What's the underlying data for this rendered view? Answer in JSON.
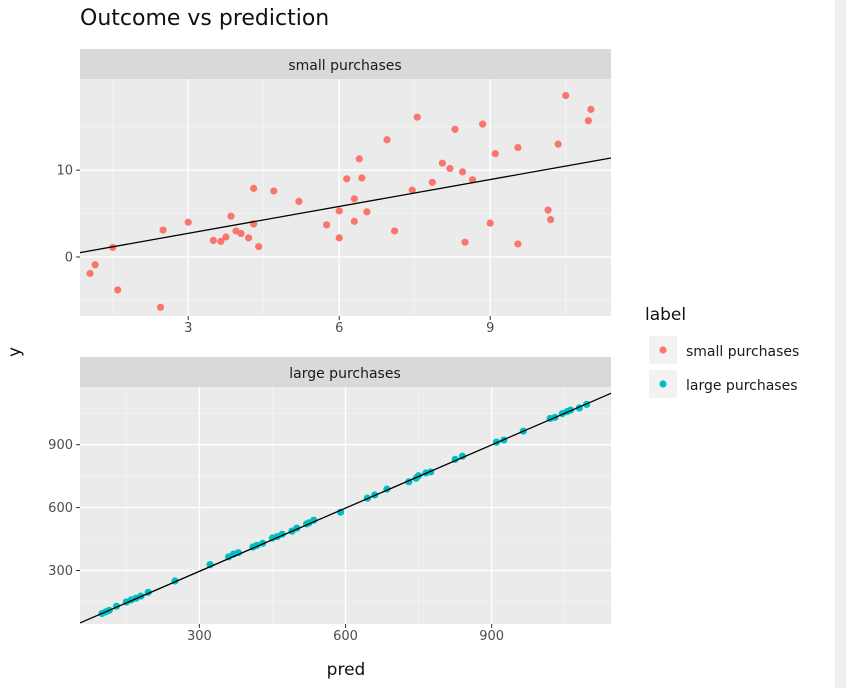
{
  "chart_data": {
    "type": "scatter",
    "title": "Outcome vs prediction",
    "xlabel": "pred",
    "ylabel": "y",
    "legend": {
      "title": "label",
      "placement": "right",
      "entries": [
        {
          "name": "small purchases",
          "color": "#F8766D"
        },
        {
          "name": "large purchases",
          "color": "#00BFC4"
        }
      ]
    },
    "facets": [
      {
        "strip": "small purchases",
        "color": "#F8766D",
        "xlim": [
          0.85,
          11.4
        ],
        "ylim": [
          -6.8,
          20.5
        ],
        "xticks": [
          3,
          6,
          9
        ],
        "xminor": [
          1.5,
          4.5,
          7.5,
          10.5
        ],
        "yticks": [
          0,
          10
        ],
        "yminor": [
          -5,
          5,
          15
        ],
        "fit_line": {
          "x": [
            0.85,
            11.4
          ],
          "y": [
            0.5,
            11.4
          ]
        },
        "points": [
          [
            1.05,
            -1.9
          ],
          [
            1.15,
            -0.9
          ],
          [
            1.5,
            1.1
          ],
          [
            1.6,
            -3.8
          ],
          [
            2.45,
            -5.8
          ],
          [
            2.5,
            3.1
          ],
          [
            3.0,
            4.0
          ],
          [
            3.5,
            1.9
          ],
          [
            3.65,
            1.8
          ],
          [
            3.75,
            2.3
          ],
          [
            3.85,
            4.7
          ],
          [
            3.95,
            3.0
          ],
          [
            4.05,
            2.7
          ],
          [
            4.2,
            2.2
          ],
          [
            4.3,
            7.9
          ],
          [
            4.3,
            3.8
          ],
          [
            4.4,
            1.2
          ],
          [
            4.7,
            7.6
          ],
          [
            5.2,
            6.4
          ],
          [
            5.75,
            3.7
          ],
          [
            6.0,
            5.3
          ],
          [
            6.0,
            2.2
          ],
          [
            6.15,
            9.0
          ],
          [
            6.3,
            6.7
          ],
          [
            6.3,
            4.1
          ],
          [
            6.4,
            11.3
          ],
          [
            6.45,
            9.1
          ],
          [
            6.55,
            5.2
          ],
          [
            6.95,
            13.5
          ],
          [
            7.1,
            3.0
          ],
          [
            7.45,
            7.7
          ],
          [
            7.55,
            16.1
          ],
          [
            7.85,
            8.6
          ],
          [
            8.05,
            10.8
          ],
          [
            8.2,
            10.2
          ],
          [
            8.3,
            14.7
          ],
          [
            8.45,
            9.8
          ],
          [
            8.5,
            1.7
          ],
          [
            8.65,
            8.9
          ],
          [
            8.85,
            15.3
          ],
          [
            9.0,
            3.9
          ],
          [
            9.1,
            11.9
          ],
          [
            9.55,
            12.6
          ],
          [
            9.55,
            1.5
          ],
          [
            10.15,
            5.4
          ],
          [
            10.2,
            4.3
          ],
          [
            10.35,
            13.0
          ],
          [
            10.5,
            18.6
          ],
          [
            10.95,
            15.7
          ],
          [
            11.0,
            17.0
          ]
        ]
      },
      {
        "strip": "large purchases",
        "color": "#00BFC4",
        "xlim": [
          55,
          1145
        ],
        "ylim": [
          45,
          1175
        ],
        "xticks": [
          300,
          600,
          900
        ],
        "xminor": [
          150,
          450,
          750,
          1050
        ],
        "yticks": [
          300,
          600,
          900
        ],
        "yminor": [
          150,
          450,
          750,
          1050
        ],
        "fit_line": {
          "x": [
            55,
            1145
          ],
          "y": [
            50,
            1145
          ]
        },
        "points": [
          [
            100,
            95
          ],
          [
            108,
            103
          ],
          [
            115,
            110
          ],
          [
            130,
            130
          ],
          [
            150,
            150
          ],
          [
            160,
            160
          ],
          [
            170,
            168
          ],
          [
            180,
            178
          ],
          [
            195,
            196
          ],
          [
            250,
            250
          ],
          [
            322,
            328
          ],
          [
            360,
            365
          ],
          [
            370,
            378
          ],
          [
            380,
            385
          ],
          [
            410,
            412
          ],
          [
            418,
            420
          ],
          [
            430,
            430
          ],
          [
            450,
            455
          ],
          [
            460,
            462
          ],
          [
            470,
            473
          ],
          [
            490,
            488
          ],
          [
            500,
            502
          ],
          [
            520,
            522
          ],
          [
            525,
            527
          ],
          [
            535,
            540
          ],
          [
            590,
            578
          ],
          [
            645,
            645
          ],
          [
            660,
            660
          ],
          [
            685,
            688
          ],
          [
            730,
            723
          ],
          [
            745,
            740
          ],
          [
            750,
            752
          ],
          [
            765,
            765
          ],
          [
            775,
            770
          ],
          [
            825,
            830
          ],
          [
            840,
            845
          ],
          [
            910,
            912
          ],
          [
            925,
            922
          ],
          [
            965,
            965
          ],
          [
            1020,
            1025
          ],
          [
            1030,
            1030
          ],
          [
            1045,
            1048
          ],
          [
            1055,
            1058
          ],
          [
            1062,
            1065
          ],
          [
            1080,
            1075
          ],
          [
            1095,
            1092
          ]
        ]
      }
    ]
  }
}
